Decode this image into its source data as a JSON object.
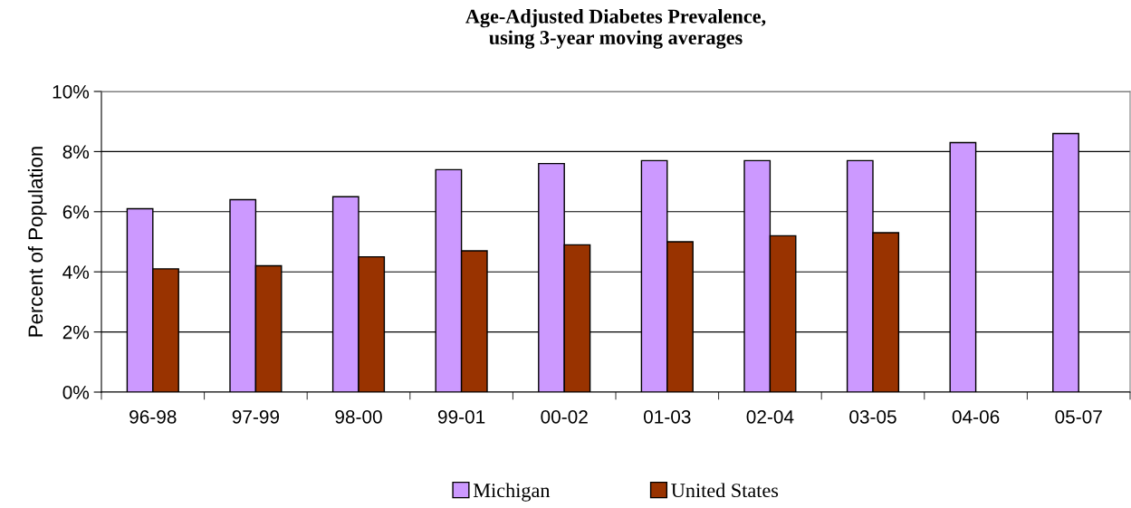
{
  "chart_data": {
    "type": "bar",
    "title": "Age-Adjusted Diabetes Prevalence,\nusing 3-year moving averages",
    "ylabel": "Percent of Population",
    "categories": [
      "96-98",
      "97-99",
      "98-00",
      "99-01",
      "00-02",
      "01-03",
      "02-04",
      "03-05",
      "04-06",
      "05-07"
    ],
    "series": [
      {
        "name": "Michigan",
        "color": "#cc99ff",
        "values": [
          6.1,
          6.4,
          6.5,
          7.4,
          7.6,
          7.7,
          7.7,
          7.7,
          8.3,
          8.6
        ]
      },
      {
        "name": "United States",
        "color": "#993300",
        "values": [
          4.1,
          4.2,
          4.5,
          4.7,
          4.9,
          5.0,
          5.2,
          5.3,
          null,
          null
        ]
      }
    ],
    "ylim": [
      0,
      10
    ],
    "yticks": [
      {
        "value": 0,
        "label": "0%"
      },
      {
        "value": 2,
        "label": "2%"
      },
      {
        "value": 4,
        "label": "4%"
      },
      {
        "value": 6,
        "label": "6%"
      },
      {
        "value": 8,
        "label": "8%"
      },
      {
        "value": 10,
        "label": "10%"
      }
    ],
    "grid": "y",
    "legend": "bottom"
  }
}
